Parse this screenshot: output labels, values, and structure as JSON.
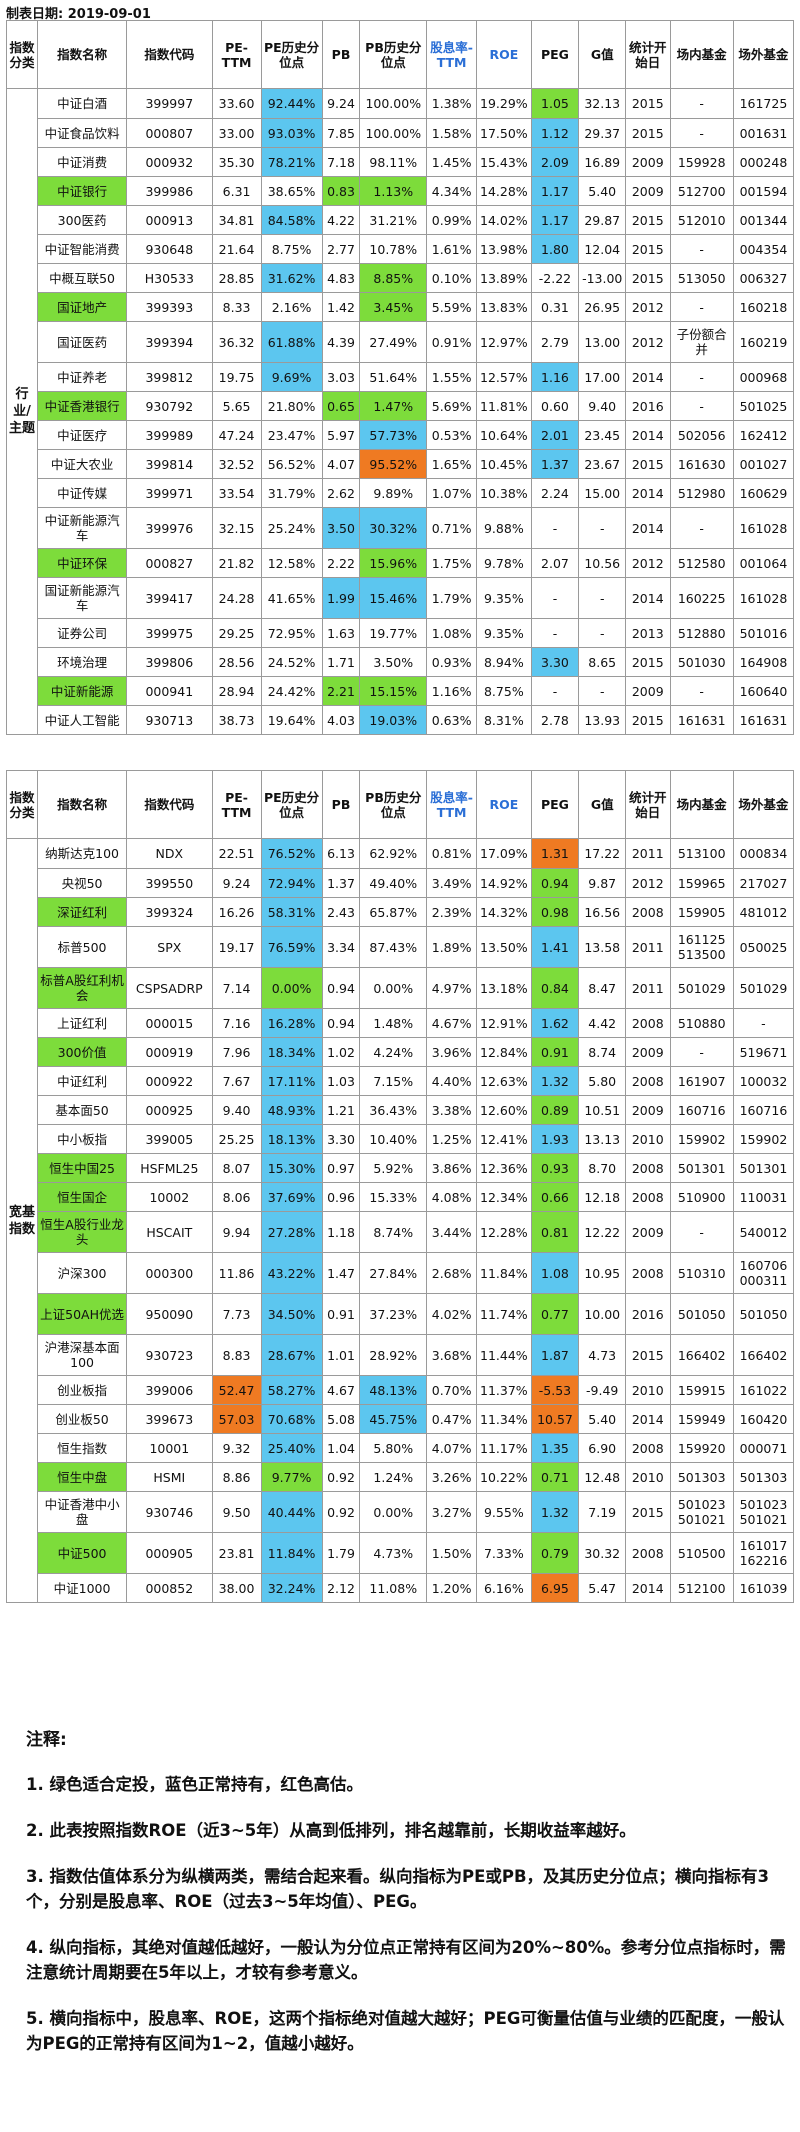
{
  "date_label": "制表日期: 2019-09-01",
  "headers": [
    "指数分类",
    "指数名称",
    "指数代码",
    "PE-TTM",
    "PE历史分位点",
    "PB",
    "PB历史分位点",
    "股息率-TTM",
    "ROE",
    "PEG",
    "G值",
    "统计开始日",
    "场内基金",
    "场外基金"
  ],
  "colors": {
    "green": "#7ddc3b",
    "blue": "#5cc6ef",
    "red": "#ef7a22"
  },
  "sections": [
    {
      "category": "行业/主题",
      "rows": [
        {
          "c": [
            "中证白酒",
            "399997",
            "33.60",
            "92.44%",
            "9.24",
            "100.00%",
            "1.38%",
            "19.29%",
            "1.05",
            "32.13",
            "2015",
            "-",
            "161725"
          ],
          "h": {
            "3": "b",
            "8": "g"
          }
        },
        {
          "c": [
            "中证食品饮料",
            "000807",
            "33.00",
            "93.03%",
            "7.85",
            "100.00%",
            "1.58%",
            "17.50%",
            "1.12",
            "29.37",
            "2015",
            "-",
            "001631"
          ],
          "h": {
            "3": "b",
            "8": "b"
          }
        },
        {
          "c": [
            "中证消费",
            "000932",
            "35.30",
            "78.21%",
            "7.18",
            "98.11%",
            "1.45%",
            "15.43%",
            "2.09",
            "16.89",
            "2009",
            "159928",
            "000248"
          ],
          "h": {
            "3": "b",
            "8": "b"
          }
        },
        {
          "c": [
            "中证银行",
            "399986",
            "6.31",
            "38.65%",
            "0.83",
            "1.13%",
            "4.34%",
            "14.28%",
            "1.17",
            "5.40",
            "2009",
            "512700",
            "001594"
          ],
          "h": {
            "0": "g",
            "4": "g",
            "5": "g",
            "8": "b"
          }
        },
        {
          "c": [
            "300医药",
            "000913",
            "34.81",
            "84.58%",
            "4.22",
            "31.21%",
            "0.99%",
            "14.02%",
            "1.17",
            "29.87",
            "2015",
            "512010",
            "001344"
          ],
          "h": {
            "3": "b",
            "8": "b"
          }
        },
        {
          "c": [
            "中证智能消费",
            "930648",
            "21.64",
            "8.75%",
            "2.77",
            "10.78%",
            "1.61%",
            "13.98%",
            "1.80",
            "12.04",
            "2015",
            "-",
            "004354"
          ],
          "h": {
            "8": "b"
          }
        },
        {
          "c": [
            "中概互联50",
            "H30533",
            "28.85",
            "31.62%",
            "4.83",
            "8.85%",
            "0.10%",
            "13.89%",
            "-2.22",
            "-13.00",
            "2015",
            "513050",
            "006327"
          ],
          "h": {
            "3": "b",
            "5": "g"
          }
        },
        {
          "c": [
            "国证地产",
            "399393",
            "8.33",
            "2.16%",
            "1.42",
            "3.45%",
            "5.59%",
            "13.83%",
            "0.31",
            "26.95",
            "2012",
            "-",
            "160218"
          ],
          "h": {
            "0": "g",
            "5": "g"
          }
        },
        {
          "c": [
            "国证医药",
            "399394",
            "36.32",
            "61.88%",
            "4.39",
            "27.49%",
            "0.91%",
            "12.97%",
            "2.79",
            "13.00",
            "2012",
            "子份额合并",
            "160219"
          ],
          "h": {
            "3": "b"
          },
          "tall": true
        },
        {
          "c": [
            "中证养老",
            "399812",
            "19.75",
            "9.69%",
            "3.03",
            "51.64%",
            "1.55%",
            "12.57%",
            "1.16",
            "17.00",
            "2014",
            "-",
            "000968"
          ],
          "h": {
            "3": "b",
            "8": "b"
          }
        },
        {
          "c": [
            "中证香港银行",
            "930792",
            "5.65",
            "21.80%",
            "0.65",
            "1.47%",
            "5.69%",
            "11.81%",
            "0.60",
            "9.40",
            "2016",
            "-",
            "501025"
          ],
          "h": {
            "0": "g",
            "4": "g",
            "5": "g"
          }
        },
        {
          "c": [
            "中证医疗",
            "399989",
            "47.24",
            "23.47%",
            "5.97",
            "57.73%",
            "0.53%",
            "10.64%",
            "2.01",
            "23.45",
            "2014",
            "502056",
            "162412"
          ],
          "h": {
            "5": "b",
            "8": "b"
          }
        },
        {
          "c": [
            "中证大农业",
            "399814",
            "32.52",
            "56.52%",
            "4.07",
            "95.52%",
            "1.65%",
            "10.45%",
            "1.37",
            "23.67",
            "2015",
            "161630",
            "001027"
          ],
          "h": {
            "5": "r",
            "8": "b"
          }
        },
        {
          "c": [
            "中证传媒",
            "399971",
            "33.54",
            "31.79%",
            "2.62",
            "9.89%",
            "1.07%",
            "10.38%",
            "2.24",
            "15.00",
            "2014",
            "512980",
            "160629"
          ],
          "h": {}
        },
        {
          "c": [
            "中证新能源汽车",
            "399976",
            "32.15",
            "25.24%",
            "3.50",
            "30.32%",
            "0.71%",
            "9.88%",
            "-",
            "-",
            "2014",
            "-",
            "161028"
          ],
          "h": {
            "4": "b",
            "5": "b"
          },
          "tall": true
        },
        {
          "c": [
            "中证环保",
            "000827",
            "21.82",
            "12.58%",
            "2.22",
            "15.96%",
            "1.75%",
            "9.78%",
            "2.07",
            "10.56",
            "2012",
            "512580",
            "001064"
          ],
          "h": {
            "0": "g",
            "5": "g"
          }
        },
        {
          "c": [
            "国证新能源汽车",
            "399417",
            "24.28",
            "41.65%",
            "1.99",
            "15.46%",
            "1.79%",
            "9.35%",
            "-",
            "-",
            "2014",
            "160225",
            "161028"
          ],
          "h": {
            "4": "b",
            "5": "b"
          },
          "tall": true
        },
        {
          "c": [
            "证券公司",
            "399975",
            "29.25",
            "72.95%",
            "1.63",
            "19.77%",
            "1.08%",
            "9.35%",
            "-",
            "-",
            "2013",
            "512880",
            "501016"
          ],
          "h": {}
        },
        {
          "c": [
            "环境治理",
            "399806",
            "28.56",
            "24.52%",
            "1.71",
            "3.50%",
            "0.93%",
            "8.94%",
            "3.30",
            "8.65",
            "2015",
            "501030",
            "164908"
          ],
          "h": {
            "8": "b"
          }
        },
        {
          "c": [
            "中证新能源",
            "000941",
            "28.94",
            "24.42%",
            "2.21",
            "15.15%",
            "1.16%",
            "8.75%",
            "-",
            "-",
            "2009",
            "-",
            "160640"
          ],
          "h": {
            "0": "g",
            "4": "g",
            "5": "g"
          }
        },
        {
          "c": [
            "中证人工智能",
            "930713",
            "38.73",
            "19.64%",
            "4.03",
            "19.03%",
            "0.63%",
            "8.31%",
            "2.78",
            "13.93",
            "2015",
            "161631",
            "161631"
          ],
          "h": {
            "5": "b"
          }
        }
      ]
    },
    {
      "category": "宽基指数",
      "rows": [
        {
          "c": [
            "纳斯达克100",
            "NDX",
            "22.51",
            "76.52%",
            "6.13",
            "62.92%",
            "0.81%",
            "17.09%",
            "1.31",
            "17.22",
            "2011",
            "513100",
            "000834"
          ],
          "h": {
            "3": "b",
            "8": "r"
          }
        },
        {
          "c": [
            "央视50",
            "399550",
            "9.24",
            "72.94%",
            "1.37",
            "49.40%",
            "3.49%",
            "14.92%",
            "0.94",
            "9.87",
            "2012",
            "159965",
            "217027"
          ],
          "h": {
            "3": "b",
            "8": "g"
          }
        },
        {
          "c": [
            "深证红利",
            "399324",
            "16.26",
            "58.31%",
            "2.43",
            "65.87%",
            "2.39%",
            "14.32%",
            "0.98",
            "16.56",
            "2008",
            "159905",
            "481012"
          ],
          "h": {
            "0": "g",
            "3": "b",
            "8": "g"
          }
        },
        {
          "c": [
            "标普500",
            "SPX",
            "19.17",
            "76.59%",
            "3.34",
            "87.43%",
            "1.89%",
            "13.50%",
            "1.41",
            "13.58",
            "2011",
            "161125 513500",
            "050025"
          ],
          "h": {
            "3": "b",
            "8": "b"
          },
          "tall": true
        },
        {
          "c": [
            "标普A股红利机会",
            "CSPSADRP",
            "7.14",
            "0.00%",
            "0.94",
            "0.00%",
            "4.97%",
            "13.18%",
            "0.84",
            "8.47",
            "2011",
            "501029",
            "501029"
          ],
          "h": {
            "0": "g",
            "3": "g",
            "8": "g"
          },
          "tall": true
        },
        {
          "c": [
            "上证红利",
            "000015",
            "7.16",
            "16.28%",
            "0.94",
            "1.48%",
            "4.67%",
            "12.91%",
            "1.62",
            "4.42",
            "2008",
            "510880",
            "-"
          ],
          "h": {
            "3": "b",
            "8": "b"
          }
        },
        {
          "c": [
            "300价值",
            "000919",
            "7.96",
            "18.34%",
            "1.02",
            "4.24%",
            "3.96%",
            "12.84%",
            "0.91",
            "8.74",
            "2009",
            "-",
            "519671"
          ],
          "h": {
            "0": "g",
            "3": "b",
            "8": "g"
          }
        },
        {
          "c": [
            "中证红利",
            "000922",
            "7.67",
            "17.11%",
            "1.03",
            "7.15%",
            "4.40%",
            "12.63%",
            "1.32",
            "5.80",
            "2008",
            "161907",
            "100032"
          ],
          "h": {
            "3": "b",
            "8": "b"
          }
        },
        {
          "c": [
            "基本面50",
            "000925",
            "9.40",
            "48.93%",
            "1.21",
            "36.43%",
            "3.38%",
            "12.60%",
            "0.89",
            "10.51",
            "2009",
            "160716",
            "160716"
          ],
          "h": {
            "3": "b",
            "8": "g"
          }
        },
        {
          "c": [
            "中小板指",
            "399005",
            "25.25",
            "18.13%",
            "3.30",
            "10.40%",
            "1.25%",
            "12.41%",
            "1.93",
            "13.13",
            "2010",
            "159902",
            "159902"
          ],
          "h": {
            "3": "b",
            "8": "b"
          }
        },
        {
          "c": [
            "恒生中国25",
            "HSFML25",
            "8.07",
            "15.30%",
            "0.97",
            "5.92%",
            "3.86%",
            "12.36%",
            "0.93",
            "8.70",
            "2008",
            "501301",
            "501301"
          ],
          "h": {
            "0": "g",
            "3": "b",
            "8": "g"
          }
        },
        {
          "c": [
            "恒生国企",
            "10002",
            "8.06",
            "37.69%",
            "0.96",
            "15.33%",
            "4.08%",
            "12.34%",
            "0.66",
            "12.18",
            "2008",
            "510900",
            "110031"
          ],
          "h": {
            "0": "g",
            "3": "b",
            "8": "g"
          }
        },
        {
          "c": [
            "恒生A股行业龙头",
            "HSCAIT",
            "9.94",
            "27.28%",
            "1.18",
            "8.74%",
            "3.44%",
            "12.28%",
            "0.81",
            "12.22",
            "2009",
            "-",
            "540012"
          ],
          "h": {
            "0": "g",
            "3": "b",
            "8": "g"
          },
          "tall": true
        },
        {
          "c": [
            "沪深300",
            "000300",
            "11.86",
            "43.22%",
            "1.47",
            "27.84%",
            "2.68%",
            "11.84%",
            "1.08",
            "10.95",
            "2008",
            "510310",
            "160706 000311"
          ],
          "h": {
            "3": "b",
            "8": "b"
          },
          "tall": true
        },
        {
          "c": [
            "上证50AH优选",
            "950090",
            "7.73",
            "34.50%",
            "0.91",
            "37.23%",
            "4.02%",
            "11.74%",
            "0.77",
            "10.00",
            "2016",
            "501050",
            "501050"
          ],
          "h": {
            "0": "g",
            "3": "b",
            "8": "g"
          },
          "tall": true
        },
        {
          "c": [
            "沪港深基本面100",
            "930723",
            "8.83",
            "28.67%",
            "1.01",
            "28.92%",
            "3.68%",
            "11.44%",
            "1.87",
            "4.73",
            "2015",
            "166402",
            "166402"
          ],
          "h": {
            "3": "b",
            "8": "b"
          },
          "tall": true
        },
        {
          "c": [
            "创业板指",
            "399006",
            "52.47",
            "58.27%",
            "4.67",
            "48.13%",
            "0.70%",
            "11.37%",
            "-5.53",
            "-9.49",
            "2010",
            "159915",
            "161022"
          ],
          "h": {
            "2": "r",
            "3": "b",
            "5": "b",
            "8": "r"
          }
        },
        {
          "c": [
            "创业板50",
            "399673",
            "57.03",
            "70.68%",
            "5.08",
            "45.75%",
            "0.47%",
            "11.34%",
            "10.57",
            "5.40",
            "2014",
            "159949",
            "160420"
          ],
          "h": {
            "2": "r",
            "3": "b",
            "5": "b",
            "8": "r"
          }
        },
        {
          "c": [
            "恒生指数",
            "10001",
            "9.32",
            "25.40%",
            "1.04",
            "5.80%",
            "4.07%",
            "11.17%",
            "1.35",
            "6.90",
            "2008",
            "159920",
            "000071"
          ],
          "h": {
            "3": "b",
            "8": "b"
          }
        },
        {
          "c": [
            "恒生中盘",
            "HSMI",
            "8.86",
            "9.77%",
            "0.92",
            "1.24%",
            "3.26%",
            "10.22%",
            "0.71",
            "12.48",
            "2010",
            "501303",
            "501303"
          ],
          "h": {
            "0": "g",
            "3": "g",
            "8": "g"
          }
        },
        {
          "c": [
            "中证香港中小盘",
            "930746",
            "9.50",
            "40.44%",
            "0.92",
            "0.00%",
            "3.27%",
            "9.55%",
            "1.32",
            "7.19",
            "2015",
            "501023 501021",
            "501023 501021"
          ],
          "h": {
            "3": "b",
            "8": "b"
          },
          "tall": true
        },
        {
          "c": [
            "中证500",
            "000905",
            "23.81",
            "11.84%",
            "1.79",
            "4.73%",
            "1.50%",
            "7.33%",
            "0.79",
            "30.32",
            "2008",
            "510500",
            "161017 162216"
          ],
          "h": {
            "0": "g",
            "3": "b",
            "8": "g"
          },
          "tall": true
        },
        {
          "c": [
            "中证1000",
            "000852",
            "38.00",
            "32.24%",
            "2.12",
            "11.08%",
            "1.20%",
            "6.16%",
            "6.95",
            "5.47",
            "2014",
            "512100",
            "161039"
          ],
          "h": {
            "3": "b",
            "8": "r"
          }
        }
      ]
    }
  ],
  "notes": {
    "title": "注释:",
    "items": [
      "1. 绿色适合定投，蓝色正常持有，红色高估。",
      "2. 此表按照指数ROE（近3~5年）从高到低排列，排名越靠前，长期收益率越好。",
      "3. 指数估值体系分为纵横两类，需结合起来看。纵向指标为PE或PB，及其历史分位点；横向指标有3个，分别是股息率、ROE（过去3~5年均值）、PEG。",
      "4. 纵向指标，其绝对值越低越好，一般认为分位点正常持有区间为20%~80%。参考分位点指标时，需注意统计周期要在5年以上，才较有参考意义。",
      "5. 横向指标中，股息率、ROE，这两个指标绝对值越大越好；PEG可衡量估值与业绩的匹配度，一般认为PEG的正常持有区间为1~2，值越小越好。"
    ]
  }
}
